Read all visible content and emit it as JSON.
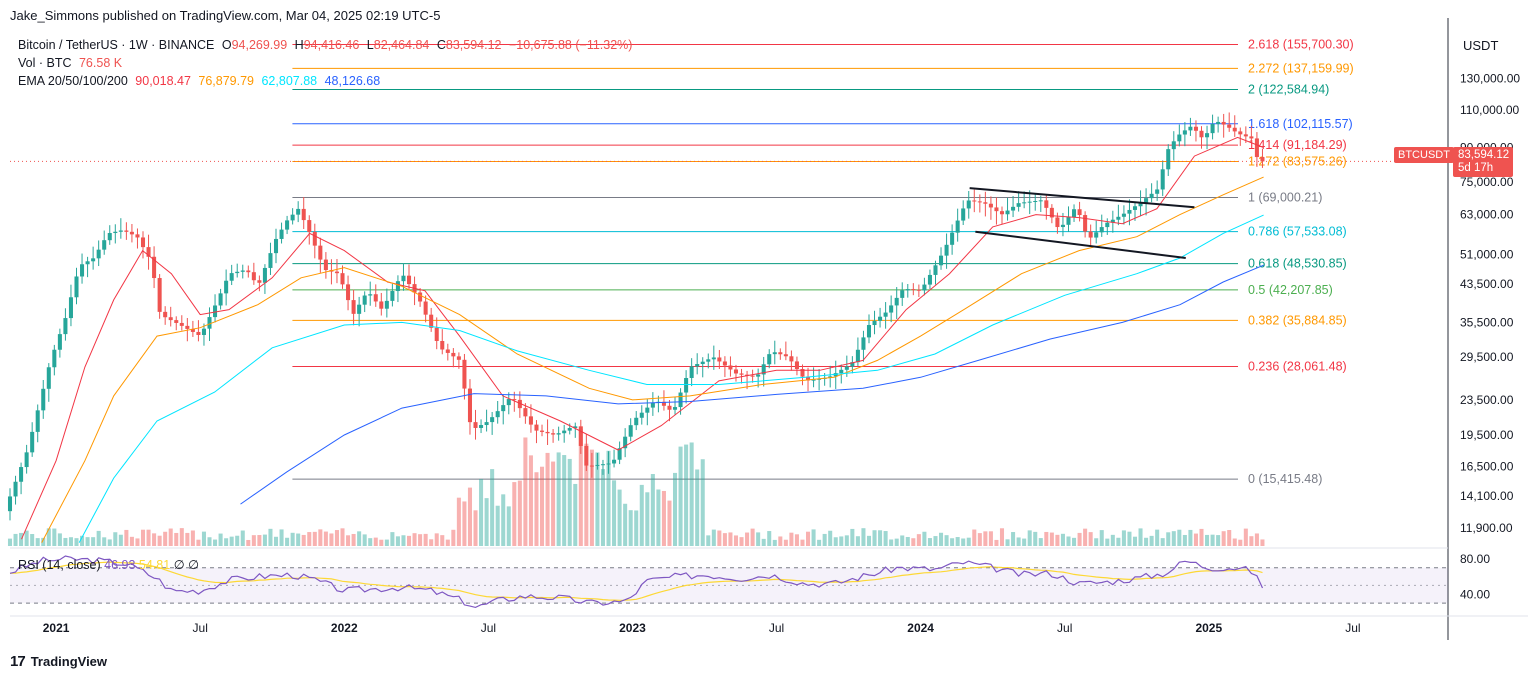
{
  "header": {
    "published": "Jake_Simmons published on TradingView.com, Mar 04, 2025 02:19 UTC-5"
  },
  "legend": {
    "symbol": "Bitcoin / TetherUS · 1W · BINANCE",
    "open_label": "O",
    "open": "94,269.99",
    "high_label": "H",
    "high": "94,416.46",
    "low_label": "L",
    "low": "82,464.84",
    "close_label": "C",
    "close": "83,594.12",
    "change": "−10,675.88 (−11.32%)",
    "vol_label": "Vol · BTC",
    "vol": "76.58 K",
    "ema_label": "EMA 20/50/100/200",
    "ema20": "90,018.47",
    "ema50": "76,879.79",
    "ema100": "62,807.88",
    "ema200": "48,126.68"
  },
  "rsi": {
    "label": "RSI (14, close)",
    "value": "46.93",
    "ma": "54.81",
    "x1": "∅",
    "x2": "∅"
  },
  "axis": {
    "title": "USDT"
  },
  "price_tag": {
    "symbol": "BTCUSDT",
    "price": "83,594.12",
    "countdown": "5d 17h"
  },
  "footer": {
    "brand": "TradingView",
    "logo": "17"
  },
  "colors": {
    "up": "#26a69a",
    "down": "#ef5350",
    "ema20": "#f23645",
    "ema50": "#ff9800",
    "ema100": "#00e5ff",
    "ema200": "#2962ff",
    "rsi": "#7e57c2",
    "rsi_ma": "#fdd835"
  },
  "chart_data": {
    "type": "candlestick",
    "title": "Bitcoin / TetherUS · 1W · BINANCE",
    "y_scale": "log",
    "ylim": [
      10800,
      170000
    ],
    "y_ticks": [
      "130,000.00",
      "110,000.00",
      "90,000.00",
      "75,000.00",
      "63,000.00",
      "51,000.00",
      "43,500.00",
      "35,500.00",
      "29,500.00",
      "23,500.00",
      "19,500.00",
      "16,500.00",
      "14,100.00",
      "11,900.00"
    ],
    "y_tick_values": [
      130000,
      110000,
      90000,
      75000,
      63000,
      51000,
      43500,
      35500,
      29500,
      23500,
      19500,
      16500,
      14100,
      11900
    ],
    "x_range": [
      "2020-10",
      "2025-10"
    ],
    "x_ticks": [
      {
        "label": "2021",
        "date": "2021.0"
      },
      {
        "label": "Jul",
        "date": "2021.5"
      },
      {
        "label": "2022",
        "date": "2022.0"
      },
      {
        "label": "Jul",
        "date": "2022.5"
      },
      {
        "label": "2023",
        "date": "2023.0"
      },
      {
        "label": "Jul",
        "date": "2023.5"
      },
      {
        "label": "2024",
        "date": "2024.0"
      },
      {
        "label": "Jul",
        "date": "2024.5"
      },
      {
        "label": "2025",
        "date": "2025.0"
      },
      {
        "label": "Jul",
        "date": "2025.5"
      }
    ],
    "price_path": [
      [
        2020.84,
        13000
      ],
      [
        2020.92,
        18000
      ],
      [
        2021.0,
        29000
      ],
      [
        2021.05,
        36000
      ],
      [
        2021.1,
        48000
      ],
      [
        2021.15,
        50000
      ],
      [
        2021.2,
        57000
      ],
      [
        2021.25,
        58000
      ],
      [
        2021.3,
        56000
      ],
      [
        2021.35,
        49000
      ],
      [
        2021.38,
        37000
      ],
      [
        2021.45,
        35000
      ],
      [
        2021.52,
        33000
      ],
      [
        2021.58,
        40000
      ],
      [
        2021.62,
        46000
      ],
      [
        2021.68,
        47000
      ],
      [
        2021.72,
        43000
      ],
      [
        2021.78,
        55000
      ],
      [
        2021.82,
        61000
      ],
      [
        2021.86,
        65000
      ],
      [
        2021.9,
        57000
      ],
      [
        2021.95,
        47000
      ],
      [
        2022.0,
        46000
      ],
      [
        2022.05,
        37000
      ],
      [
        2022.1,
        42000
      ],
      [
        2022.15,
        38000
      ],
      [
        2022.22,
        46000
      ],
      [
        2022.28,
        40000
      ],
      [
        2022.35,
        31000
      ],
      [
        2022.42,
        29000
      ],
      [
        2022.46,
        20000
      ],
      [
        2022.52,
        21000
      ],
      [
        2022.6,
        24000
      ],
      [
        2022.68,
        20000
      ],
      [
        2022.75,
        19500
      ],
      [
        2022.82,
        20500
      ],
      [
        2022.86,
        16500
      ],
      [
        2022.95,
        16800
      ],
      [
        2023.02,
        21000
      ],
      [
        2023.1,
        23500
      ],
      [
        2023.16,
        22000
      ],
      [
        2023.22,
        28000
      ],
      [
        2023.3,
        29500
      ],
      [
        2023.38,
        27000
      ],
      [
        2023.45,
        26500
      ],
      [
        2023.5,
        30500
      ],
      [
        2023.56,
        29500
      ],
      [
        2023.62,
        26000
      ],
      [
        2023.7,
        26500
      ],
      [
        2023.78,
        28500
      ],
      [
        2023.84,
        35000
      ],
      [
        2023.9,
        37500
      ],
      [
        2023.96,
        42500
      ],
      [
        2024.02,
        42000
      ],
      [
        2024.1,
        52000
      ],
      [
        2024.18,
        68000
      ],
      [
        2024.24,
        67000
      ],
      [
        2024.3,
        63000
      ],
      [
        2024.36,
        67000
      ],
      [
        2024.44,
        68000
      ],
      [
        2024.5,
        58000
      ],
      [
        2024.56,
        66000
      ],
      [
        2024.6,
        55000
      ],
      [
        2024.66,
        60000
      ],
      [
        2024.72,
        63000
      ],
      [
        2024.78,
        67000
      ],
      [
        2024.84,
        72000
      ],
      [
        2024.88,
        90000
      ],
      [
        2024.92,
        97000
      ],
      [
        2024.96,
        101000
      ],
      [
        2025.0,
        94000
      ],
      [
        2025.04,
        104000
      ],
      [
        2025.08,
        101000
      ],
      [
        2025.12,
        97000
      ],
      [
        2025.17,
        94300
      ],
      [
        2025.19,
        83594
      ]
    ],
    "ema_series": [
      {
        "name": "EMA 20",
        "color": "#f23645",
        "points": [
          [
            2020.88,
            11200
          ],
          [
            2021.0,
            17000
          ],
          [
            2021.1,
            28000
          ],
          [
            2021.2,
            40000
          ],
          [
            2021.3,
            52000
          ],
          [
            2021.4,
            46000
          ],
          [
            2021.5,
            37000
          ],
          [
            2021.6,
            38000
          ],
          [
            2021.75,
            45000
          ],
          [
            2021.88,
            57000
          ],
          [
            2022.0,
            52000
          ],
          [
            2022.15,
            44000
          ],
          [
            2022.28,
            42000
          ],
          [
            2022.4,
            33000
          ],
          [
            2022.55,
            24000
          ],
          [
            2022.75,
            21000
          ],
          [
            2022.95,
            18000
          ],
          [
            2023.1,
            20500
          ],
          [
            2023.3,
            26000
          ],
          [
            2023.5,
            27500
          ],
          [
            2023.65,
            27500
          ],
          [
            2023.8,
            29000
          ],
          [
            2023.95,
            38000
          ],
          [
            2024.1,
            46000
          ],
          [
            2024.25,
            59000
          ],
          [
            2024.4,
            63000
          ],
          [
            2024.55,
            62000
          ],
          [
            2024.7,
            60000
          ],
          [
            2024.82,
            65000
          ],
          [
            2024.95,
            86000
          ],
          [
            2025.1,
            95000
          ],
          [
            2025.19,
            90000
          ]
        ]
      },
      {
        "name": "EMA 50",
        "color": "#ff9800",
        "points": [
          [
            2020.95,
            11000
          ],
          [
            2021.1,
            17000
          ],
          [
            2021.2,
            24000
          ],
          [
            2021.35,
            33000
          ],
          [
            2021.5,
            34500
          ],
          [
            2021.7,
            39000
          ],
          [
            2021.85,
            45000
          ],
          [
            2022.0,
            47500
          ],
          [
            2022.2,
            43000
          ],
          [
            2022.4,
            37000
          ],
          [
            2022.6,
            30000
          ],
          [
            2022.85,
            25000
          ],
          [
            2023.0,
            23500
          ],
          [
            2023.2,
            24000
          ],
          [
            2023.45,
            25500
          ],
          [
            2023.7,
            26500
          ],
          [
            2023.85,
            29000
          ],
          [
            2024.0,
            33000
          ],
          [
            2024.15,
            38000
          ],
          [
            2024.35,
            46000
          ],
          [
            2024.55,
            52000
          ],
          [
            2024.75,
            56000
          ],
          [
            2024.9,
            63000
          ],
          [
            2025.05,
            70000
          ],
          [
            2025.19,
            76880
          ]
        ]
      },
      {
        "name": "EMA 100",
        "color": "#00e5ff",
        "points": [
          [
            2021.08,
            11000
          ],
          [
            2021.2,
            15500
          ],
          [
            2021.35,
            21000
          ],
          [
            2021.55,
            24500
          ],
          [
            2021.75,
            31000
          ],
          [
            2022.0,
            35000
          ],
          [
            2022.2,
            35500
          ],
          [
            2022.4,
            34000
          ],
          [
            2022.6,
            30500
          ],
          [
            2022.85,
            27500
          ],
          [
            2023.05,
            25500
          ],
          [
            2023.3,
            25500
          ],
          [
            2023.6,
            26500
          ],
          [
            2023.85,
            27500
          ],
          [
            2024.05,
            30000
          ],
          [
            2024.25,
            35000
          ],
          [
            2024.5,
            41000
          ],
          [
            2024.75,
            46000
          ],
          [
            2024.9,
            50000
          ],
          [
            2025.05,
            57000
          ],
          [
            2025.19,
            62808
          ]
        ]
      },
      {
        "name": "EMA 200",
        "color": "#2962ff",
        "points": [
          [
            2021.64,
            13500
          ],
          [
            2021.8,
            16000
          ],
          [
            2022.0,
            19500
          ],
          [
            2022.2,
            22500
          ],
          [
            2022.45,
            24300
          ],
          [
            2022.7,
            24000
          ],
          [
            2022.95,
            23000
          ],
          [
            2023.2,
            23300
          ],
          [
            2023.5,
            24200
          ],
          [
            2023.8,
            25000
          ],
          [
            2024.0,
            26500
          ],
          [
            2024.2,
            29000
          ],
          [
            2024.45,
            32500
          ],
          [
            2024.7,
            35500
          ],
          [
            2024.9,
            39000
          ],
          [
            2025.05,
            44000
          ],
          [
            2025.19,
            48127
          ]
        ]
      }
    ],
    "fib_levels": [
      {
        "label": "2.618 (155,700.30)",
        "value": 155700.3,
        "color": "#f23645"
      },
      {
        "label": "2.272 (137,159.99)",
        "value": 137159.99,
        "color": "#ff9800"
      },
      {
        "label": "2 (122,584.94)",
        "value": 122584.94,
        "color": "#089981"
      },
      {
        "label": "1.618 (102,115.57)",
        "value": 102115.57,
        "color": "#2962ff"
      },
      {
        "label": "1.414 (91,184.29)",
        "value": 91184.29,
        "color": "#f23645"
      },
      {
        "label": "1.272 (83,575.26)",
        "value": 83575.26,
        "color": "#ff9800"
      },
      {
        "label": "1 (69,000.21)",
        "value": 69000.21,
        "color": "#787b86"
      },
      {
        "label": "0.786 (57,533.08)",
        "value": 57533.08,
        "color": "#00bcd4"
      },
      {
        "label": "0.618 (48,530.85)",
        "value": 48530.85,
        "color": "#089981"
      },
      {
        "label": "0.5 (42,207.85)",
        "value": 42207.85,
        "color": "#4caf50"
      },
      {
        "label": "0.382 (35,884.85)",
        "value": 35884.85,
        "color": "#ff9800"
      },
      {
        "label": "0.236 (28,061.48)",
        "value": 28061.48,
        "color": "#f23645"
      },
      {
        "label": "0 (15,415.48)",
        "value": 15415.48,
        "color": "#787b86"
      }
    ],
    "fib_start": 2021.82,
    "channel_lines": [
      [
        [
          2024.17,
          72500
        ],
        [
          2024.95,
          65500
        ]
      ],
      [
        [
          2024.19,
          57500
        ],
        [
          2024.92,
          50000
        ]
      ]
    ],
    "rsi_ticks": [
      "80.00",
      "40.00"
    ],
    "rsi_tick_values": [
      80,
      40
    ],
    "rsi_series": [
      [
        2020.84,
        65
      ],
      [
        2020.95,
        78
      ],
      [
        2021.05,
        80
      ],
      [
        2021.15,
        78
      ],
      [
        2021.25,
        74
      ],
      [
        2021.35,
        58
      ],
      [
        2021.4,
        44
      ],
      [
        2021.5,
        44
      ],
      [
        2021.6,
        56
      ],
      [
        2021.7,
        60
      ],
      [
        2021.82,
        62
      ],
      [
        2021.9,
        56
      ],
      [
        2022.0,
        44
      ],
      [
        2022.1,
        46
      ],
      [
        2022.2,
        48
      ],
      [
        2022.3,
        44
      ],
      [
        2022.4,
        34
      ],
      [
        2022.46,
        25
      ],
      [
        2022.52,
        32
      ],
      [
        2022.62,
        38
      ],
      [
        2022.75,
        36
      ],
      [
        2022.86,
        30
      ],
      [
        2022.98,
        32
      ],
      [
        2023.05,
        55
      ],
      [
        2023.15,
        60
      ],
      [
        2023.25,
        62
      ],
      [
        2023.38,
        58
      ],
      [
        2023.48,
        62
      ],
      [
        2023.6,
        52
      ],
      [
        2023.7,
        52
      ],
      [
        2023.82,
        62
      ],
      [
        2023.92,
        70
      ],
      [
        2024.05,
        68
      ],
      [
        2024.15,
        76
      ],
      [
        2024.25,
        70
      ],
      [
        2024.35,
        62
      ],
      [
        2024.45,
        64
      ],
      [
        2024.55,
        52
      ],
      [
        2024.65,
        54
      ],
      [
        2024.75,
        58
      ],
      [
        2024.85,
        64
      ],
      [
        2024.92,
        78
      ],
      [
        2025.0,
        70
      ],
      [
        2025.1,
        70
      ],
      [
        2025.15,
        66
      ],
      [
        2025.19,
        47
      ]
    ]
  }
}
